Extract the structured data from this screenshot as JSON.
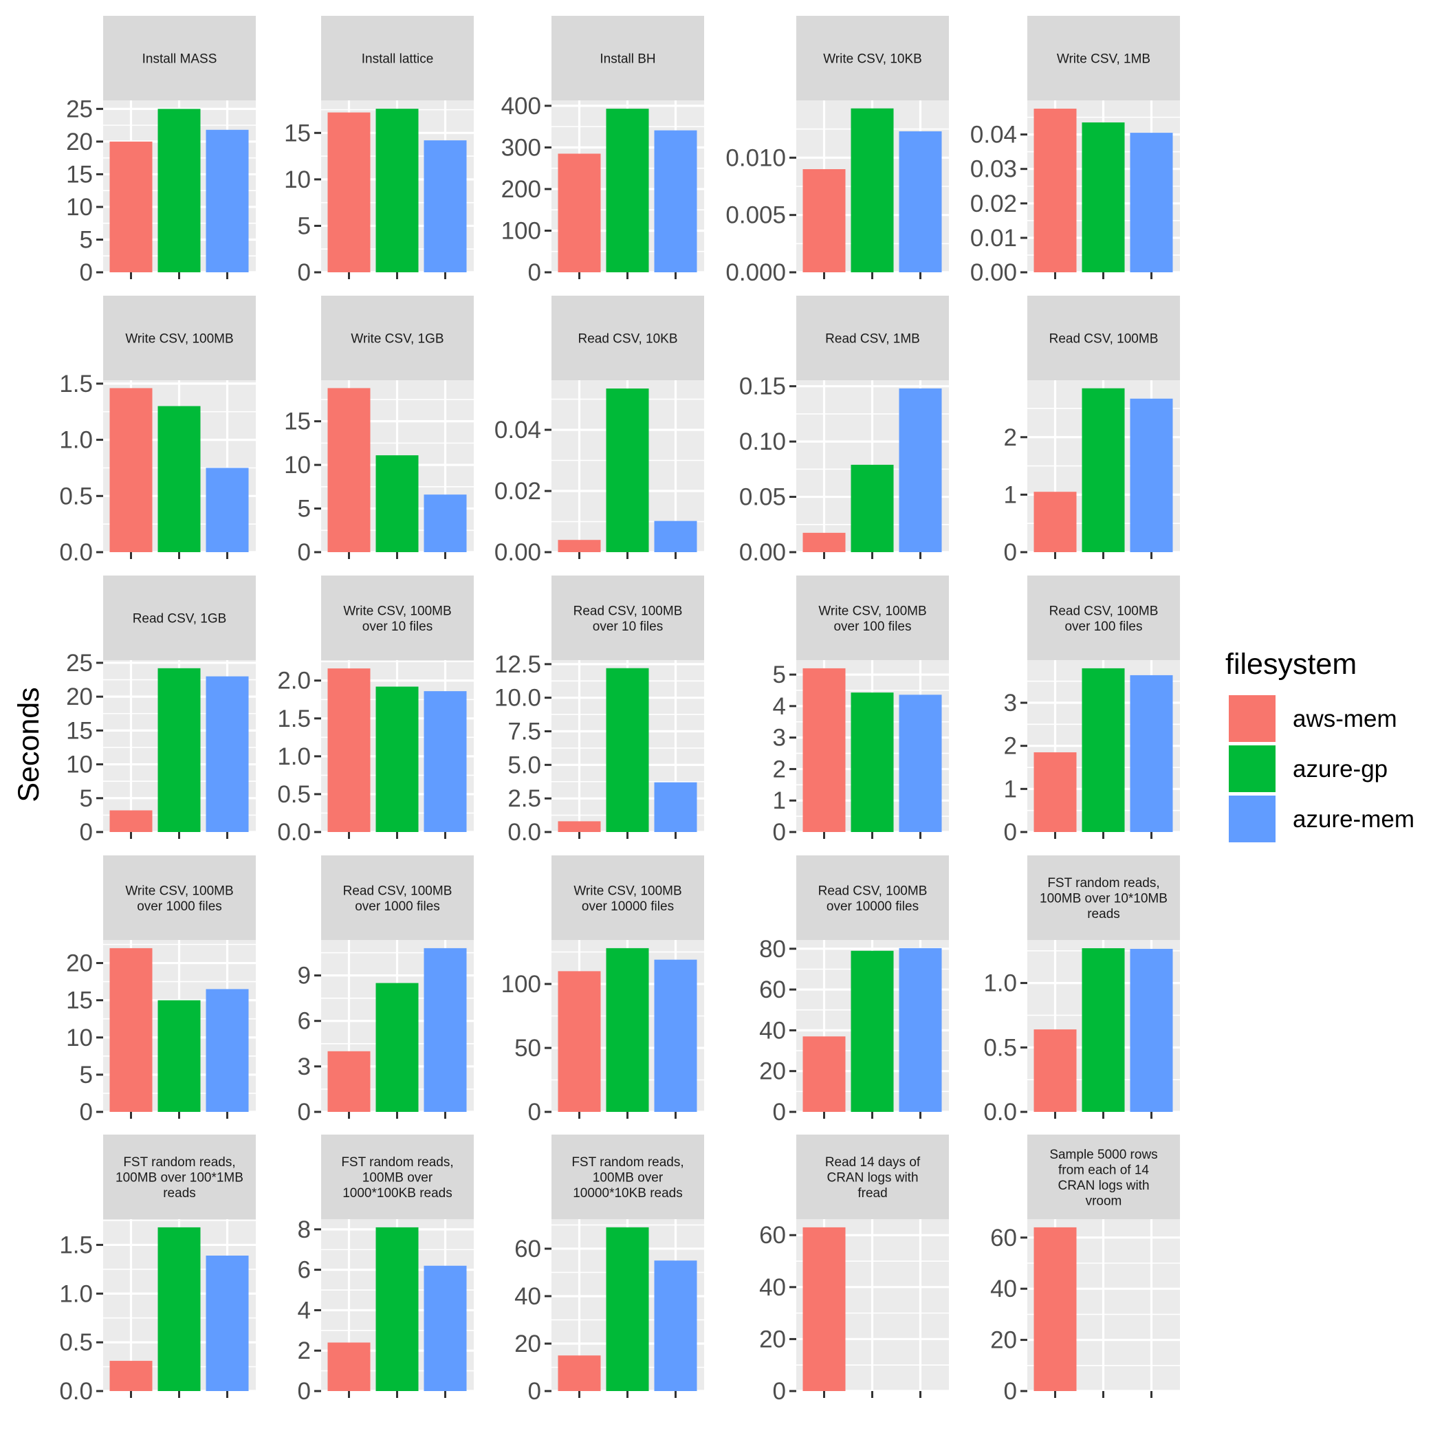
{
  "chart_data": {
    "type": "bar",
    "facet_layout": "5x5 grid, free y scales",
    "ylabel": "Seconds",
    "xlabel": "",
    "legend": {
      "title": "filesystem",
      "placement": "right",
      "entries": [
        "aws-mem",
        "azure-gp",
        "azure-mem"
      ]
    },
    "colors": {
      "aws-mem": "#F8766D",
      "azure-gp": "#00BA38",
      "azure-mem": "#619CFF",
      "panel_bg": "#EBEBEB",
      "strip_bg": "#D9D9D9",
      "grid": "#FFFFFF"
    },
    "categories": [
      "aws-mem",
      "azure-gp",
      "azure-mem"
    ],
    "panels": [
      {
        "title": [
          "Install MASS"
        ],
        "values": [
          20,
          25,
          21.8
        ],
        "ylim": [
          0,
          26.3
        ],
        "ticks": [
          0,
          5,
          10,
          15,
          20,
          25
        ],
        "tick_labels": [
          "0",
          "5",
          "10",
          "15",
          "20",
          "25"
        ]
      },
      {
        "title": [
          "Install lattice"
        ],
        "values": [
          17.2,
          17.6,
          14.2
        ],
        "ylim": [
          0,
          18.5
        ],
        "ticks": [
          0,
          5,
          10,
          15
        ],
        "tick_labels": [
          "0",
          "5",
          "10",
          "15"
        ]
      },
      {
        "title": [
          "Install BH"
        ],
        "values": [
          285,
          393,
          341
        ],
        "ylim": [
          0,
          413
        ],
        "ticks": [
          0,
          100,
          200,
          300,
          400
        ],
        "tick_labels": [
          "0",
          "100",
          "200",
          "300",
          "400"
        ]
      },
      {
        "title": [
          "Write CSV, 10KB"
        ],
        "values": [
          0.009,
          0.0143,
          0.0123
        ],
        "ylim": [
          0,
          0.015
        ],
        "ticks": [
          0,
          0.005,
          0.01
        ],
        "tick_labels": [
          "0.000",
          "0.005",
          "0.010"
        ]
      },
      {
        "title": [
          "Write CSV, 1MB"
        ],
        "values": [
          0.0475,
          0.0435,
          0.0405
        ],
        "ylim": [
          0,
          0.0499
        ],
        "ticks": [
          0,
          0.01,
          0.02,
          0.03,
          0.04
        ],
        "tick_labels": [
          "0.00",
          "0.01",
          "0.02",
          "0.03",
          "0.04"
        ]
      },
      {
        "title": [
          "Write CSV, 100MB"
        ],
        "values": [
          1.46,
          1.3,
          0.75
        ],
        "ylim": [
          0,
          1.53
        ],
        "ticks": [
          0,
          0.5,
          1.0,
          1.5
        ],
        "tick_labels": [
          "0.0",
          "0.5",
          "1.0",
          "1.5"
        ]
      },
      {
        "title": [
          "Write CSV, 1GB"
        ],
        "values": [
          18.8,
          11.1,
          6.6
        ],
        "ylim": [
          0,
          19.7
        ],
        "ticks": [
          0,
          5,
          10,
          15
        ],
        "tick_labels": [
          "0",
          "5",
          "10",
          "15"
        ]
      },
      {
        "title": [
          "Read CSV, 10KB"
        ],
        "values": [
          0.004,
          0.0535,
          0.0102
        ],
        "ylim": [
          0,
          0.0562
        ],
        "ticks": [
          0,
          0.02,
          0.04
        ],
        "tick_labels": [
          "0.00",
          "0.02",
          "0.04"
        ]
      },
      {
        "title": [
          "Read CSV, 1MB"
        ],
        "values": [
          0.0175,
          0.079,
          0.148
        ],
        "ylim": [
          0,
          0.1554
        ],
        "ticks": [
          0,
          0.05,
          0.1,
          0.15
        ],
        "tick_labels": [
          "0.00",
          "0.05",
          "0.10",
          "0.15"
        ]
      },
      {
        "title": [
          "Read CSV, 100MB"
        ],
        "values": [
          1.05,
          2.85,
          2.67
        ],
        "ylim": [
          0,
          2.99
        ],
        "ticks": [
          0,
          1,
          2
        ],
        "tick_labels": [
          "0",
          "1",
          "2"
        ]
      },
      {
        "title": [
          "Read CSV, 1GB"
        ],
        "values": [
          3.2,
          24.2,
          23
        ],
        "ylim": [
          0,
          25.4
        ],
        "ticks": [
          0,
          5,
          10,
          15,
          20,
          25
        ],
        "tick_labels": [
          "0",
          "5",
          "10",
          "15",
          "20",
          "25"
        ]
      },
      {
        "title": [
          "Write CSV, 100MB",
          "over 10 files"
        ],
        "values": [
          2.16,
          1.92,
          1.86
        ],
        "ylim": [
          0,
          2.27
        ],
        "ticks": [
          0,
          0.5,
          1.0,
          1.5,
          2.0
        ],
        "tick_labels": [
          "0.0",
          "0.5",
          "1.0",
          "1.5",
          "2.0"
        ]
      },
      {
        "title": [
          "Read CSV, 100MB",
          "over 10 files"
        ],
        "values": [
          0.8,
          12.2,
          3.7
        ],
        "ylim": [
          0,
          12.8
        ],
        "ticks": [
          0,
          2.5,
          5.0,
          7.5,
          10.0,
          12.5
        ],
        "tick_labels": [
          "0.0",
          "2.5",
          "5.0",
          "7.5",
          "10.0",
          "12.5"
        ]
      },
      {
        "title": [
          "Write CSV, 100MB",
          "over 100 files"
        ],
        "values": [
          5.2,
          4.43,
          4.36
        ],
        "ylim": [
          0,
          5.46
        ],
        "ticks": [
          0,
          1,
          2,
          3,
          4,
          5
        ],
        "tick_labels": [
          "0",
          "1",
          "2",
          "3",
          "4",
          "5"
        ]
      },
      {
        "title": [
          "Read CSV, 100MB",
          "over 100 files"
        ],
        "values": [
          1.85,
          3.8,
          3.64
        ],
        "ylim": [
          0,
          3.99
        ],
        "ticks": [
          0,
          1,
          2,
          3
        ],
        "tick_labels": [
          "0",
          "1",
          "2",
          "3"
        ]
      },
      {
        "title": [
          "Write CSV, 100MB",
          "over 1000 files"
        ],
        "values": [
          22,
          15,
          16.5
        ],
        "ylim": [
          0,
          23.1
        ],
        "ticks": [
          0,
          5,
          10,
          15,
          20
        ],
        "tick_labels": [
          "0",
          "5",
          "10",
          "15",
          "20"
        ]
      },
      {
        "title": [
          "Read CSV, 100MB",
          "over 1000 files"
        ],
        "values": [
          4.0,
          8.5,
          10.8
        ],
        "ylim": [
          0,
          11.34
        ],
        "ticks": [
          0,
          3,
          6,
          9
        ],
        "tick_labels": [
          "0",
          "3",
          "6",
          "9"
        ]
      },
      {
        "title": [
          "Write CSV, 100MB",
          "over 10000 files"
        ],
        "values": [
          110,
          128,
          119
        ],
        "ylim": [
          0,
          134.4
        ],
        "ticks": [
          0,
          50,
          100
        ],
        "tick_labels": [
          "0",
          "50",
          "100"
        ]
      },
      {
        "title": [
          "Read CSV, 100MB",
          "over 10000 files"
        ],
        "values": [
          37,
          79,
          80.3
        ],
        "ylim": [
          0,
          84.3
        ],
        "ticks": [
          0,
          20,
          40,
          60,
          80
        ],
        "tick_labels": [
          "0",
          "20",
          "40",
          "60",
          "80"
        ]
      },
      {
        "title": [
          "FST random reads,",
          "100MB over 10*10MB",
          "reads"
        ],
        "values": [
          0.64,
          1.27,
          1.265
        ],
        "ylim": [
          0,
          1.334
        ],
        "ticks": [
          0,
          0.5,
          1.0
        ],
        "tick_labels": [
          "0.0",
          "0.5",
          "1.0"
        ]
      },
      {
        "title": [
          "FST random reads,",
          "100MB over 100*1MB",
          "reads"
        ],
        "values": [
          0.31,
          1.68,
          1.39
        ],
        "ylim": [
          0,
          1.764
        ],
        "ticks": [
          0,
          0.5,
          1.0,
          1.5
        ],
        "tick_labels": [
          "0.0",
          "0.5",
          "1.0",
          "1.5"
        ]
      },
      {
        "title": [
          "FST random reads,",
          "100MB over",
          "1000*100KB reads"
        ],
        "values": [
          2.4,
          8.1,
          6.2
        ],
        "ylim": [
          0,
          8.505
        ],
        "ticks": [
          0,
          2,
          4,
          6,
          8
        ],
        "tick_labels": [
          "0",
          "2",
          "4",
          "6",
          "8"
        ]
      },
      {
        "title": [
          "FST random reads,",
          "100MB over",
          "10000*10KB reads"
        ],
        "values": [
          15,
          69,
          55
        ],
        "ylim": [
          0,
          72.45
        ],
        "ticks": [
          0,
          20,
          40,
          60
        ],
        "tick_labels": [
          "0",
          "20",
          "40",
          "60"
        ]
      },
      {
        "title": [
          "Read 14 days of",
          "CRAN logs with",
          "fread"
        ],
        "values": [
          63,
          null,
          null
        ],
        "ylim": [
          0,
          66.15
        ],
        "ticks": [
          0,
          20,
          40,
          60
        ],
        "tick_labels": [
          "0",
          "20",
          "40",
          "60"
        ]
      },
      {
        "title": [
          "Sample 5000 rows",
          "from each of 14",
          "CRAN logs with",
          "vroom"
        ],
        "values": [
          64,
          null,
          null
        ],
        "ylim": [
          0,
          67.2
        ],
        "ticks": [
          0,
          20,
          40,
          60
        ],
        "tick_labels": [
          "0",
          "20",
          "40",
          "60"
        ]
      }
    ]
  }
}
